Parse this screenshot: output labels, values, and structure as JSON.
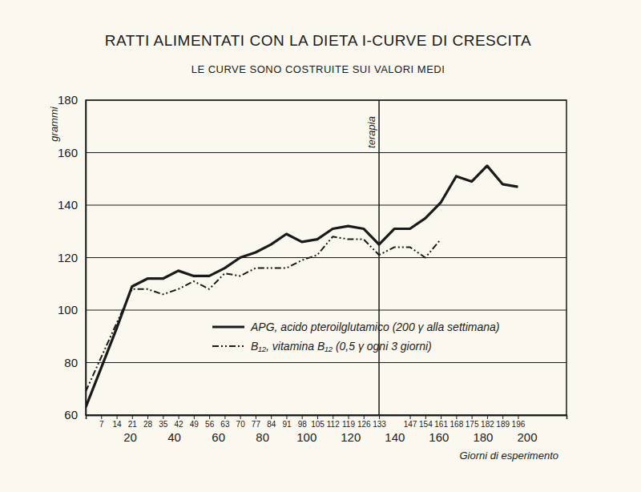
{
  "chart_data": {
    "type": "line",
    "title": "RATTI ALIMENTATI CON LA DIETA I-CURVE DI CRESCITA",
    "subtitle": "LE CURVE SONO COSTRUITE SUI VALORI MEDI",
    "x_label": "Giorni di esperimento",
    "y_label": "grammi",
    "x": [
      0,
      7,
      14,
      21,
      28,
      35,
      42,
      49,
      56,
      63,
      70,
      77,
      84,
      91,
      98,
      105,
      112,
      119,
      126,
      133,
      140,
      147,
      154,
      161,
      168,
      175,
      182,
      189,
      196
    ],
    "series": [
      {
        "name": "APG, acido pteroilglutamico (200 γ alla settimana)",
        "color": "#1a1a1a",
        "line_style": "solid",
        "values": [
          63,
          78,
          93,
          109,
          112,
          112,
          115,
          113,
          113,
          116,
          120,
          122,
          125,
          129,
          126,
          127,
          131,
          132,
          131,
          125,
          131,
          131,
          135,
          141,
          151,
          149,
          155,
          148,
          147
        ]
      },
      {
        "name": "B₁₂, vitamina B₁₂ (0,5 γ ogni 3 giorni)",
        "color": "#1a1a1a",
        "line_style": "dashdotdot",
        "values": [
          69,
          82,
          95,
          108,
          108,
          106,
          108,
          111,
          108,
          114,
          113,
          116,
          116,
          116,
          119,
          121,
          128,
          127,
          127,
          121,
          124,
          124,
          120,
          127,
          null,
          null,
          null,
          null,
          null
        ]
      }
    ],
    "xlim": [
      0,
      218
    ],
    "xticks": [
      20,
      40,
      60,
      80,
      100,
      120,
      140,
      160,
      180,
      200
    ],
    "x2ticks": [
      7,
      14,
      21,
      28,
      35,
      42,
      49,
      56,
      63,
      70,
      77,
      84,
      91,
      98,
      105,
      112,
      119,
      126,
      133,
      147,
      154,
      161,
      168,
      175,
      182,
      189,
      196
    ],
    "ylim": [
      60,
      180
    ],
    "yticks": [
      60,
      80,
      100,
      120,
      140,
      160,
      180
    ],
    "grid": true,
    "legend": "lower right",
    "annotations": [
      {
        "x": 133,
        "text": "terapia"
      }
    ]
  }
}
